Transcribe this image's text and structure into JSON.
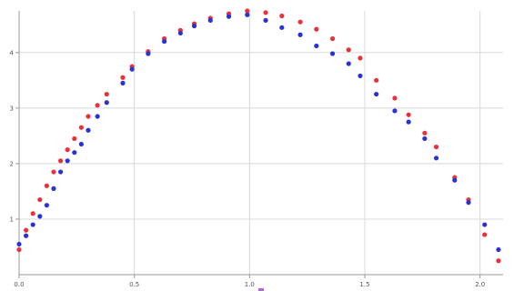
{
  "chart_data": {
    "type": "scatter",
    "title": "",
    "xlabel": "",
    "ylabel": "",
    "xlim": [
      0.0,
      2.1
    ],
    "ylim": [
      0.0,
      4.75
    ],
    "grid": true,
    "legend": "none",
    "x_ticks": [
      0.0,
      0.5,
      1.0,
      1.5,
      2.0
    ],
    "x_tick_labels": [
      "0.0",
      "0.5",
      "1.0",
      "1.5",
      "2.0"
    ],
    "y_ticks": [
      1,
      2,
      3,
      4
    ],
    "y_tick_labels": [
      "1",
      "2",
      "3",
      "4"
    ],
    "colors": {
      "series_red": "#e8313a",
      "series_blue": "#2a32d6",
      "grid": "#d8d8d8",
      "axis": "#9a9a9a"
    },
    "series": [
      {
        "color": "#e8313a",
        "points": [
          [
            0.0,
            0.45
          ],
          [
            0.03,
            0.8
          ],
          [
            0.06,
            1.1
          ],
          [
            0.09,
            1.35
          ],
          [
            0.12,
            1.6
          ],
          [
            0.15,
            1.85
          ],
          [
            0.18,
            2.05
          ],
          [
            0.21,
            2.25
          ],
          [
            0.24,
            2.45
          ],
          [
            0.27,
            2.65
          ],
          [
            0.3,
            2.85
          ],
          [
            0.34,
            3.05
          ],
          [
            0.38,
            3.25
          ],
          [
            0.45,
            3.55
          ],
          [
            0.49,
            3.75
          ],
          [
            0.56,
            4.02
          ],
          [
            0.63,
            4.25
          ],
          [
            0.7,
            4.4
          ],
          [
            0.76,
            4.52
          ],
          [
            0.83,
            4.62
          ],
          [
            0.91,
            4.7
          ],
          [
            0.99,
            4.75
          ],
          [
            1.07,
            4.72
          ],
          [
            1.14,
            4.66
          ],
          [
            1.22,
            4.55
          ],
          [
            1.29,
            4.42
          ],
          [
            1.36,
            4.25
          ],
          [
            1.43,
            4.05
          ],
          [
            1.48,
            3.9
          ],
          [
            1.55,
            3.5
          ],
          [
            1.63,
            3.18
          ],
          [
            1.69,
            2.88
          ],
          [
            1.76,
            2.55
          ],
          [
            1.81,
            2.3
          ],
          [
            1.89,
            1.75
          ],
          [
            1.95,
            1.35
          ],
          [
            2.02,
            0.72
          ],
          [
            2.08,
            0.25
          ]
        ]
      },
      {
        "color": "#2a32d6",
        "points": [
          [
            0.0,
            0.55
          ],
          [
            0.03,
            0.7
          ],
          [
            0.06,
            0.9
          ],
          [
            0.09,
            1.05
          ],
          [
            0.12,
            1.25
          ],
          [
            0.15,
            1.55
          ],
          [
            0.18,
            1.85
          ],
          [
            0.21,
            2.05
          ],
          [
            0.24,
            2.2
          ],
          [
            0.27,
            2.35
          ],
          [
            0.3,
            2.6
          ],
          [
            0.34,
            2.85
          ],
          [
            0.38,
            3.1
          ],
          [
            0.45,
            3.45
          ],
          [
            0.49,
            3.7
          ],
          [
            0.56,
            3.98
          ],
          [
            0.63,
            4.2
          ],
          [
            0.7,
            4.35
          ],
          [
            0.76,
            4.48
          ],
          [
            0.83,
            4.58
          ],
          [
            0.91,
            4.65
          ],
          [
            0.99,
            4.68
          ],
          [
            1.07,
            4.58
          ],
          [
            1.14,
            4.45
          ],
          [
            1.22,
            4.32
          ],
          [
            1.29,
            4.12
          ],
          [
            1.36,
            3.98
          ],
          [
            1.43,
            3.8
          ],
          [
            1.48,
            3.58
          ],
          [
            1.55,
            3.25
          ],
          [
            1.63,
            2.95
          ],
          [
            1.69,
            2.75
          ],
          [
            1.76,
            2.45
          ],
          [
            1.81,
            2.1
          ],
          [
            1.89,
            1.7
          ],
          [
            1.95,
            1.3
          ],
          [
            2.02,
            0.9
          ],
          [
            2.08,
            0.45
          ]
        ]
      }
    ]
  }
}
